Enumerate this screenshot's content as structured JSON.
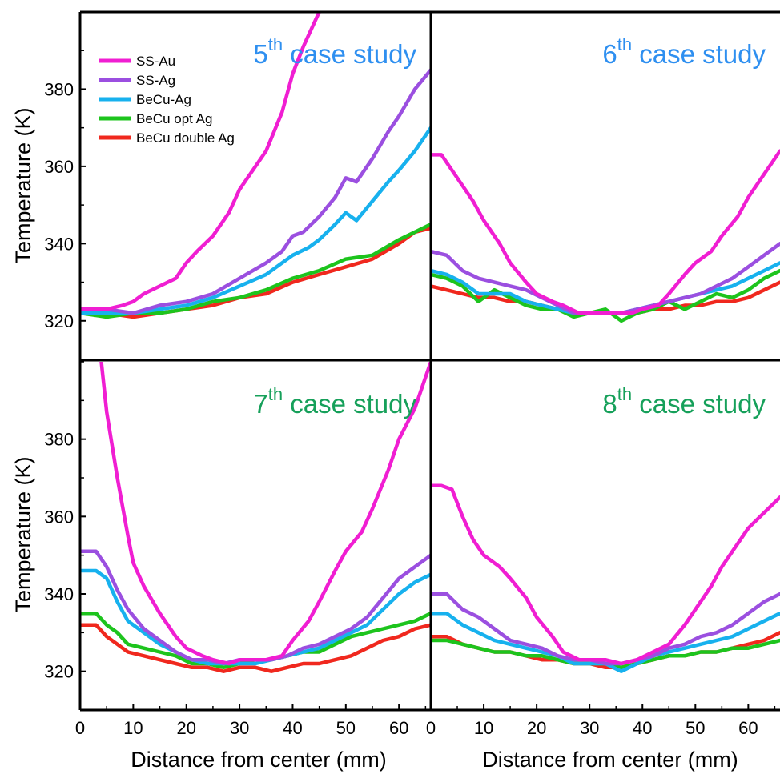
{
  "figure": {
    "ylabel": "Temperature (K)",
    "xlabel": "Distance from center (mm)"
  },
  "colors": {
    "SS-Au": "#f01ed2",
    "SS-Ag": "#9b4fe0",
    "BeCu-Ag": "#17b1ee",
    "BeCu opt Ag": "#1dc41d",
    "BeCu double Ag": "#f0281e",
    "title_blue": "#2e8ff0",
    "title_green": "#16a05a"
  },
  "legend": [
    "SS-Au",
    "SS-Ag",
    "BeCu-Ag",
    "BeCu opt Ag",
    "BeCu double Ag"
  ],
  "chart_data": [
    {
      "type": "line",
      "panel": "top-left",
      "title_num": "5",
      "title_sup": "th",
      "title_rest": " case study",
      "title_color": "#2e8ff0",
      "ylabel": "Temperature (K)",
      "xlabel": "",
      "xlim": [
        0,
        66
      ],
      "ylim": [
        310,
        400
      ],
      "yticks": [
        320,
        340,
        360,
        380
      ],
      "xticks": [],
      "series": [
        {
          "name": "SS-Au",
          "x": [
            0,
            5,
            8,
            10,
            12,
            15,
            18,
            20,
            22,
            25,
            28,
            30,
            32,
            35,
            38,
            40,
            42,
            45
          ],
          "y": [
            323,
            323,
            324,
            325,
            327,
            329,
            331,
            335,
            338,
            342,
            348,
            354,
            358,
            364,
            374,
            384,
            391,
            400
          ]
        },
        {
          "name": "SS-Ag",
          "x": [
            0,
            5,
            10,
            15,
            20,
            25,
            30,
            35,
            38,
            40,
            42,
            45,
            48,
            50,
            52,
            55,
            58,
            60,
            63,
            66
          ],
          "y": [
            323,
            323,
            322,
            324,
            325,
            327,
            331,
            335,
            338,
            342,
            343,
            347,
            352,
            357,
            356,
            362,
            369,
            373,
            380,
            385
          ]
        },
        {
          "name": "BeCu-Ag",
          "x": [
            0,
            5,
            10,
            15,
            20,
            25,
            30,
            35,
            38,
            40,
            43,
            45,
            48,
            50,
            52,
            55,
            58,
            60,
            63,
            66
          ],
          "y": [
            322,
            322,
            322,
            323,
            324,
            326,
            329,
            332,
            335,
            337,
            339,
            341,
            345,
            348,
            346,
            351,
            356,
            359,
            364,
            370
          ]
        },
        {
          "name": "BeCu opt Ag",
          "x": [
            0,
            5,
            10,
            15,
            20,
            25,
            30,
            35,
            40,
            45,
            50,
            55,
            60,
            63,
            66
          ],
          "y": [
            322,
            321,
            322,
            322,
            323,
            325,
            326,
            328,
            331,
            333,
            336,
            337,
            341,
            343,
            345
          ]
        },
        {
          "name": "BeCu double Ag",
          "x": [
            0,
            5,
            10,
            15,
            20,
            25,
            30,
            35,
            40,
            45,
            50,
            55,
            60,
            63,
            66
          ],
          "y": [
            322,
            322,
            321,
            322,
            323,
            324,
            326,
            327,
            330,
            332,
            334,
            336,
            340,
            343,
            344
          ]
        }
      ]
    },
    {
      "type": "line",
      "panel": "top-right",
      "title_num": "6",
      "title_sup": "th",
      "title_rest": " case study",
      "title_color": "#2e8ff0",
      "ylabel": "",
      "xlabel": "",
      "xlim": [
        0,
        66
      ],
      "ylim": [
        310,
        400
      ],
      "yticks": [],
      "xticks": [],
      "series": [
        {
          "name": "SS-Au",
          "x": [
            0,
            2,
            5,
            8,
            10,
            13,
            15,
            18,
            20,
            23,
            25,
            28,
            30,
            33,
            35,
            38,
            40,
            43,
            45,
            48,
            50,
            53,
            55,
            58,
            60,
            63,
            66
          ],
          "y": [
            363,
            363,
            357,
            351,
            346,
            340,
            335,
            330,
            327,
            325,
            324,
            322,
            322,
            322,
            322,
            322,
            323,
            324,
            327,
            332,
            335,
            338,
            342,
            347,
            352,
            358,
            364
          ]
        },
        {
          "name": "SS-Ag",
          "x": [
            0,
            3,
            6,
            9,
            12,
            15,
            18,
            21,
            24,
            27,
            30,
            33,
            36,
            39,
            42,
            45,
            48,
            51,
            54,
            57,
            60,
            63,
            66
          ],
          "y": [
            338,
            337,
            333,
            331,
            330,
            329,
            328,
            326,
            324,
            322,
            322,
            322,
            322,
            323,
            324,
            325,
            326,
            327,
            329,
            331,
            334,
            337,
            340
          ]
        },
        {
          "name": "BeCu-Ag",
          "x": [
            0,
            3,
            6,
            9,
            12,
            15,
            18,
            21,
            24,
            27,
            30,
            33,
            36,
            39,
            42,
            45,
            48,
            51,
            54,
            57,
            60,
            63,
            66
          ],
          "y": [
            333,
            332,
            330,
            327,
            327,
            327,
            325,
            324,
            323,
            322,
            322,
            322,
            322,
            323,
            324,
            325,
            326,
            327,
            328,
            329,
            331,
            333,
            335
          ]
        },
        {
          "name": "BeCu opt Ag",
          "x": [
            0,
            3,
            6,
            9,
            12,
            15,
            18,
            21,
            24,
            27,
            30,
            33,
            36,
            39,
            42,
            45,
            48,
            51,
            54,
            57,
            60,
            63,
            66
          ],
          "y": [
            332,
            331,
            329,
            325,
            328,
            326,
            324,
            323,
            323,
            321,
            322,
            323,
            320,
            322,
            323,
            325,
            323,
            325,
            327,
            326,
            328,
            331,
            333
          ]
        },
        {
          "name": "BeCu double Ag",
          "x": [
            0,
            3,
            6,
            9,
            12,
            15,
            18,
            21,
            24,
            27,
            30,
            33,
            36,
            39,
            42,
            45,
            48,
            51,
            54,
            57,
            60,
            63,
            66
          ],
          "y": [
            329,
            328,
            327,
            326,
            326,
            325,
            325,
            324,
            323,
            322,
            322,
            322,
            322,
            322,
            323,
            323,
            324,
            324,
            325,
            325,
            326,
            328,
            330
          ]
        }
      ]
    },
    {
      "type": "line",
      "panel": "bottom-left",
      "title_num": "7",
      "title_sup": "th",
      "title_rest": " case study",
      "title_color": "#16a05a",
      "ylabel": "Temperature (K)",
      "xlabel": "Distance from center (mm)",
      "xlim": [
        0,
        66
      ],
      "ylim": [
        310,
        400
      ],
      "yticks": [
        320,
        340,
        360,
        380
      ],
      "xticks": [
        0,
        10,
        20,
        30,
        40,
        50,
        60
      ],
      "series": [
        {
          "name": "SS-Au",
          "x": [
            4,
            5,
            7,
            9,
            10,
            12,
            15,
            18,
            20,
            23,
            25,
            28,
            30,
            33,
            35,
            38,
            40,
            43,
            45,
            48,
            50,
            53,
            55,
            58,
            60,
            63,
            66
          ],
          "y": [
            400,
            387,
            370,
            355,
            348,
            342,
            335,
            329,
            326,
            324,
            323,
            322,
            323,
            323,
            323,
            324,
            328,
            333,
            338,
            346,
            351,
            356,
            362,
            372,
            380,
            388,
            400
          ]
        },
        {
          "name": "SS-Ag",
          "x": [
            0,
            3,
            5,
            7,
            9,
            12,
            15,
            18,
            21,
            24,
            27,
            30,
            33,
            36,
            39,
            42,
            45,
            48,
            51,
            54,
            57,
            60,
            63,
            66
          ],
          "y": [
            351,
            351,
            347,
            341,
            336,
            331,
            328,
            325,
            323,
            323,
            322,
            323,
            323,
            323,
            324,
            326,
            327,
            329,
            331,
            334,
            339,
            344,
            347,
            350
          ]
        },
        {
          "name": "BeCu-Ag",
          "x": [
            0,
            3,
            5,
            7,
            9,
            12,
            15,
            18,
            21,
            24,
            27,
            30,
            33,
            36,
            39,
            42,
            45,
            48,
            51,
            54,
            57,
            60,
            63,
            66
          ],
          "y": [
            346,
            346,
            344,
            338,
            333,
            330,
            327,
            325,
            323,
            322,
            322,
            322,
            322,
            323,
            324,
            325,
            326,
            328,
            330,
            332,
            336,
            340,
            343,
            345
          ]
        },
        {
          "name": "BeCu opt Ag",
          "x": [
            0,
            3,
            5,
            7,
            9,
            12,
            15,
            18,
            21,
            24,
            27,
            30,
            33,
            36,
            39,
            42,
            45,
            48,
            51,
            54,
            57,
            60,
            63,
            66
          ],
          "y": [
            335,
            335,
            332,
            330,
            327,
            326,
            325,
            324,
            322,
            322,
            321,
            322,
            323,
            323,
            324,
            325,
            325,
            327,
            329,
            330,
            331,
            332,
            333,
            335
          ]
        },
        {
          "name": "BeCu double Ag",
          "x": [
            0,
            3,
            5,
            7,
            9,
            12,
            15,
            18,
            21,
            24,
            27,
            30,
            33,
            36,
            39,
            42,
            45,
            48,
            51,
            54,
            57,
            60,
            63,
            66
          ],
          "y": [
            332,
            332,
            329,
            327,
            325,
            324,
            323,
            322,
            321,
            321,
            320,
            321,
            321,
            320,
            321,
            322,
            322,
            323,
            324,
            326,
            328,
            329,
            331,
            332
          ]
        }
      ]
    },
    {
      "type": "line",
      "panel": "bottom-right",
      "title_num": "8",
      "title_sup": "th",
      "title_rest": " case study",
      "title_color": "#16a05a",
      "ylabel": "",
      "xlabel": "Distance from center (mm)",
      "xlim": [
        0,
        66
      ],
      "ylim": [
        310,
        400
      ],
      "yticks": [],
      "xticks": [
        0,
        10,
        20,
        30,
        40,
        50,
        60
      ],
      "series": [
        {
          "name": "SS-Au",
          "x": [
            0,
            2,
            4,
            6,
            8,
            10,
            13,
            15,
            18,
            20,
            23,
            25,
            28,
            30,
            33,
            36,
            39,
            42,
            45,
            48,
            50,
            53,
            55,
            58,
            60,
            63,
            66
          ],
          "y": [
            368,
            368,
            367,
            360,
            354,
            350,
            347,
            344,
            339,
            334,
            329,
            325,
            323,
            323,
            323,
            322,
            323,
            325,
            327,
            332,
            336,
            342,
            347,
            353,
            357,
            361,
            365
          ]
        },
        {
          "name": "SS-Ag",
          "x": [
            0,
            3,
            6,
            9,
            12,
            15,
            18,
            21,
            24,
            27,
            30,
            33,
            36,
            39,
            42,
            45,
            48,
            51,
            54,
            57,
            60,
            63,
            66
          ],
          "y": [
            340,
            340,
            336,
            334,
            331,
            328,
            327,
            326,
            324,
            323,
            323,
            322,
            322,
            323,
            324,
            326,
            327,
            329,
            330,
            332,
            335,
            338,
            340
          ]
        },
        {
          "name": "BeCu-Ag",
          "x": [
            0,
            3,
            6,
            9,
            12,
            15,
            18,
            21,
            24,
            27,
            30,
            33,
            36,
            39,
            42,
            45,
            48,
            51,
            54,
            57,
            60,
            63,
            66
          ],
          "y": [
            335,
            335,
            332,
            330,
            328,
            327,
            326,
            325,
            324,
            322,
            322,
            322,
            320,
            322,
            324,
            325,
            326,
            327,
            328,
            329,
            331,
            333,
            335
          ]
        },
        {
          "name": "BeCu opt Ag",
          "x": [
            0,
            3,
            6,
            9,
            12,
            15,
            18,
            21,
            24,
            27,
            30,
            33,
            36,
            39,
            42,
            45,
            48,
            51,
            54,
            57,
            60,
            63,
            66
          ],
          "y": [
            328,
            328,
            327,
            326,
            325,
            325,
            324,
            324,
            323,
            322,
            322,
            322,
            321,
            322,
            323,
            324,
            324,
            325,
            325,
            326,
            326,
            327,
            328
          ]
        },
        {
          "name": "BeCu double Ag",
          "x": [
            0,
            3,
            6,
            9,
            12,
            15,
            18,
            21,
            24,
            27,
            30,
            33,
            36,
            39,
            42,
            45,
            48,
            51,
            54,
            57,
            60,
            63,
            66
          ],
          "y": [
            329,
            329,
            327,
            326,
            325,
            325,
            324,
            323,
            323,
            322,
            322,
            321,
            321,
            322,
            323,
            324,
            324,
            325,
            325,
            326,
            327,
            328,
            330
          ]
        }
      ]
    }
  ]
}
